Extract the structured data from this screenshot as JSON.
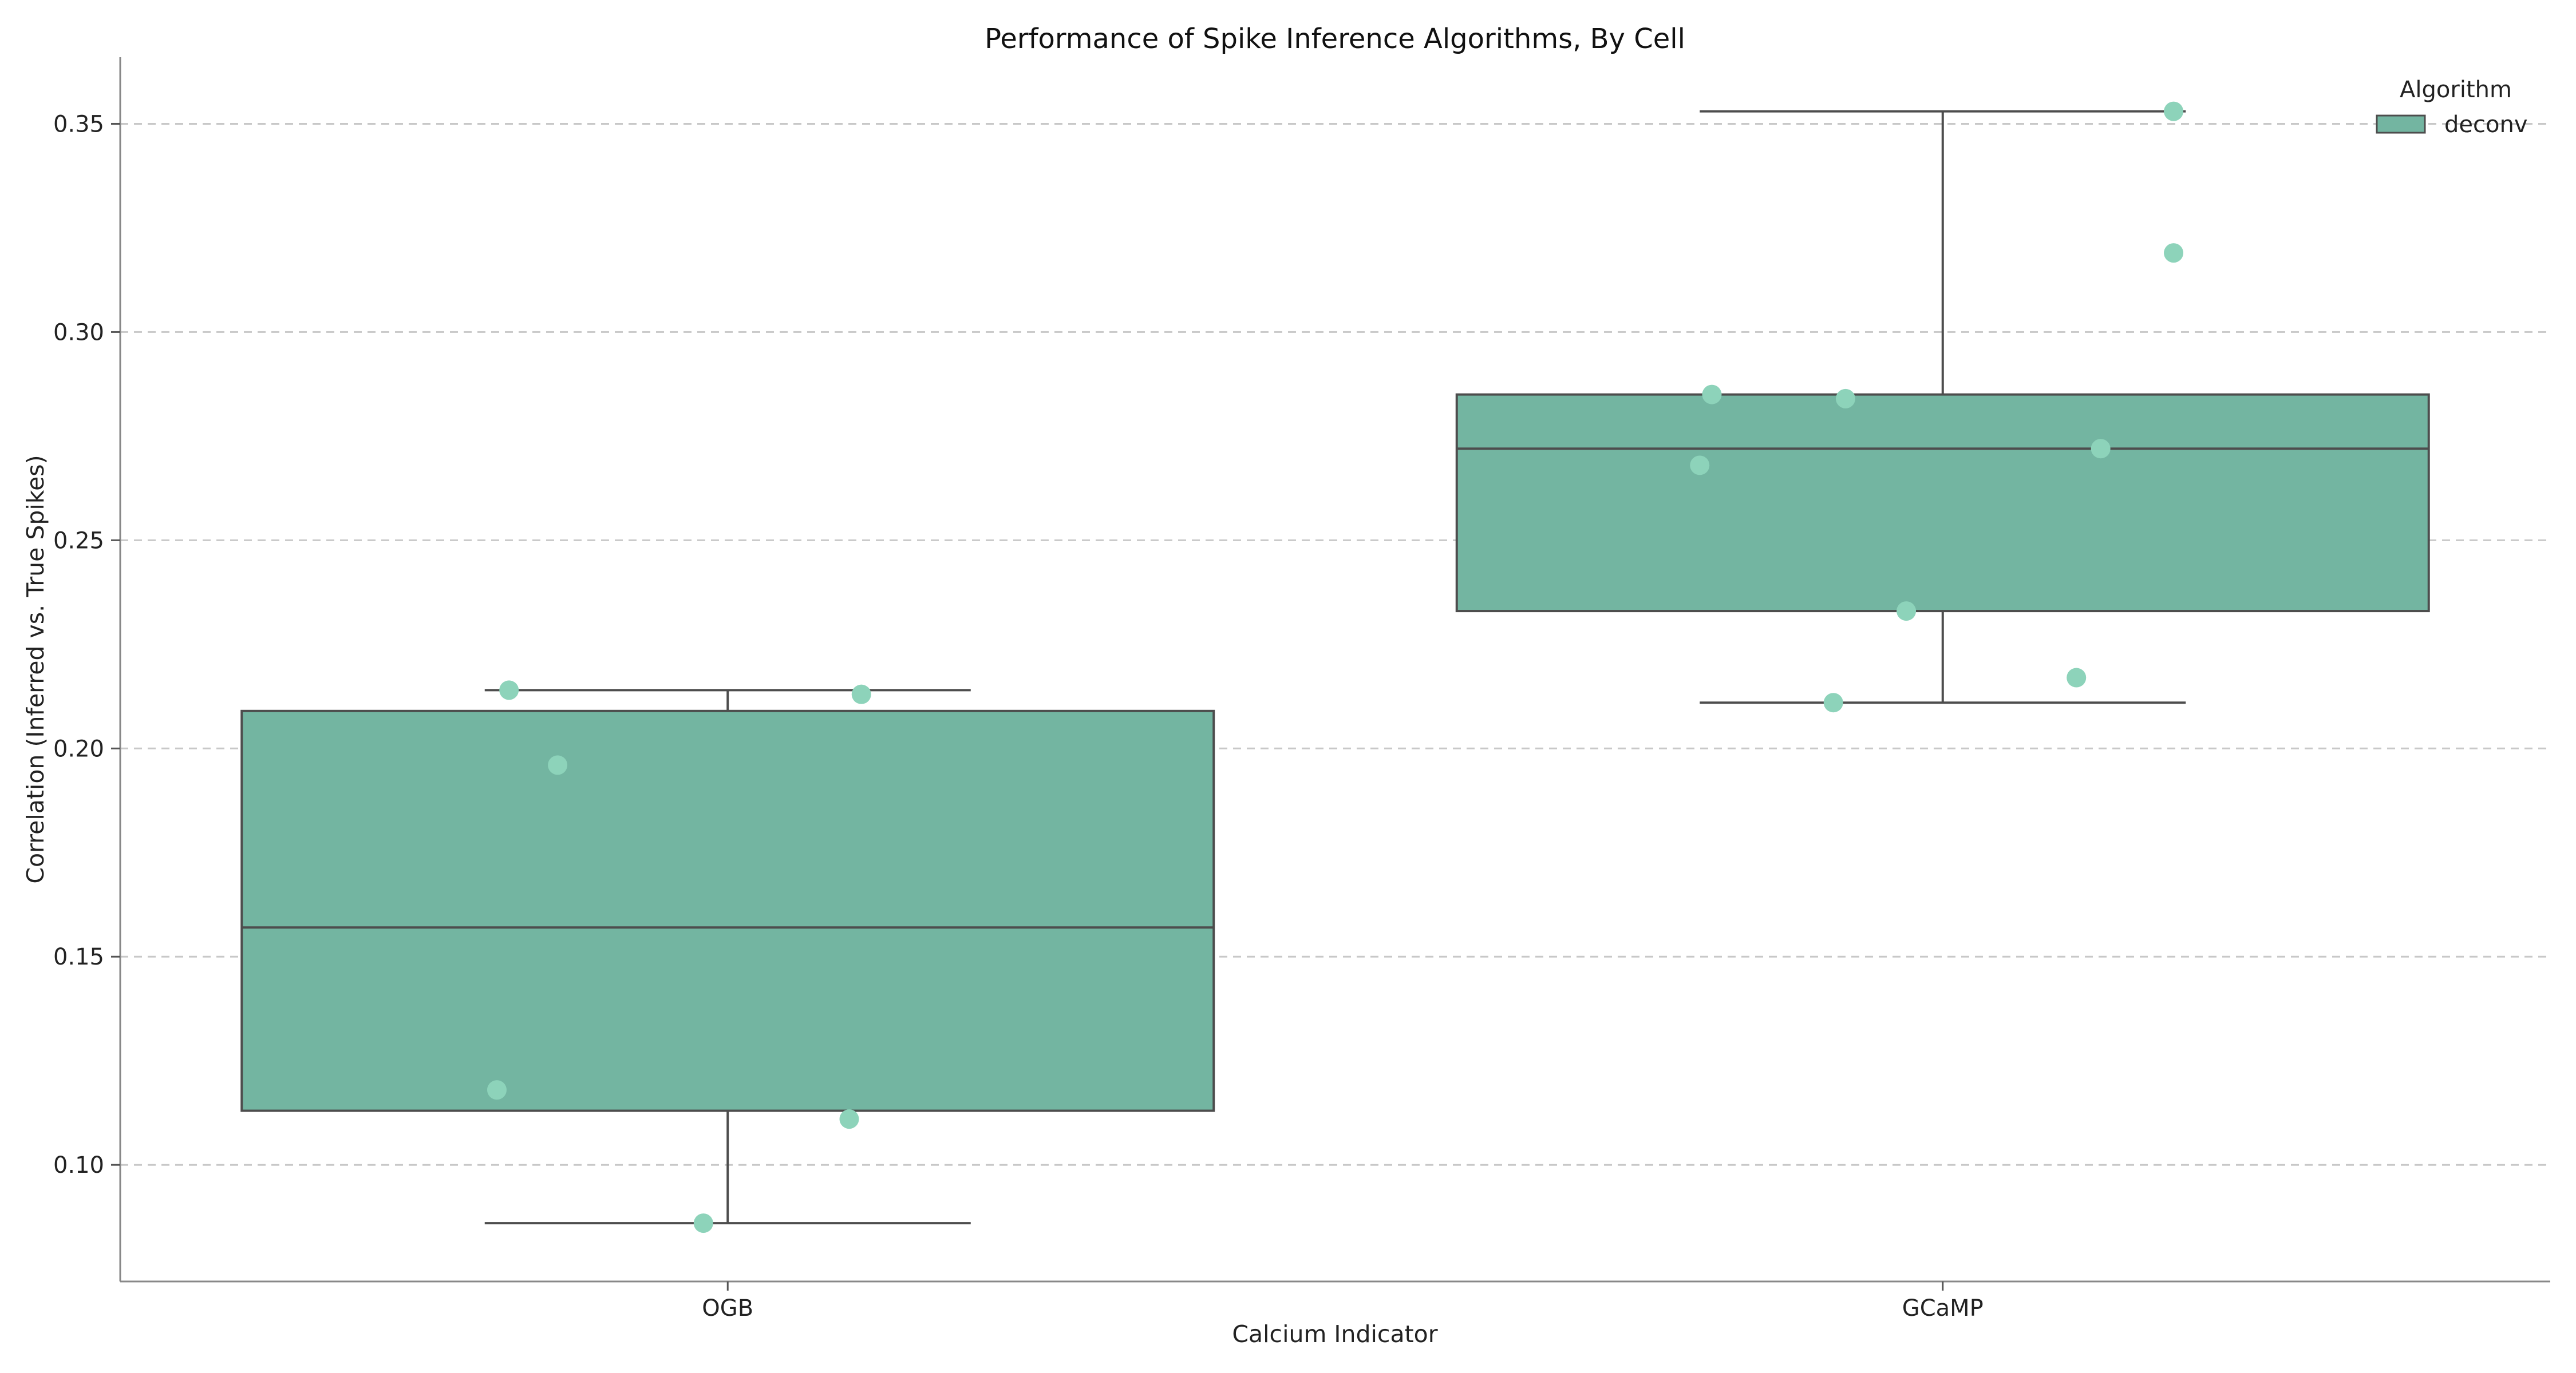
{
  "chart_data": {
    "type": "box",
    "title": "Performance of Spike Inference Algorithms, By Cell",
    "xlabel": "Calcium Indicator",
    "ylabel": "Correlation (Inferred vs. True Spikes)",
    "ylim": [
      0.072,
      0.366
    ],
    "yticks": [
      0.1,
      0.15,
      0.2,
      0.25,
      0.3,
      0.35
    ],
    "ytick_labels": [
      "0.10",
      "0.15",
      "0.20",
      "0.25",
      "0.30",
      "0.35"
    ],
    "categories": [
      "OGB",
      "GCaMP"
    ],
    "grid": "y-dashed",
    "legend": {
      "title": "Algorithm",
      "position": "top-right",
      "entries": [
        {
          "label": "deconv",
          "color": "#73b5a1"
        }
      ]
    },
    "colors": {
      "box": "#73b5a1",
      "point": "#8dd3ba",
      "edge": "#4d4d4d"
    },
    "series": [
      {
        "name": "deconv",
        "boxes": [
          {
            "category": "OGB",
            "whisker_low": 0.086,
            "q1": 0.113,
            "median": 0.157,
            "q3": 0.209,
            "whisker_high": 0.214
          },
          {
            "category": "GCaMP",
            "whisker_low": 0.211,
            "q1": 0.233,
            "median": 0.272,
            "q3": 0.285,
            "whisker_high": 0.353
          }
        ],
        "points": [
          {
            "category": "OGB",
            "values": [
              0.214,
              0.213,
              0.196,
              0.118,
              0.111,
              0.086
            ],
            "jitter": [
              -0.18,
              0.11,
              -0.14,
              -0.19,
              0.1,
              -0.02
            ]
          },
          {
            "category": "GCaMP",
            "values": [
              0.353,
              0.319,
              0.285,
              0.284,
              0.272,
              0.268,
              0.233,
              0.217,
              0.211
            ],
            "jitter": [
              0.19,
              0.19,
              -0.19,
              -0.08,
              0.13,
              -0.2,
              -0.03,
              0.11,
              -0.09
            ]
          }
        ]
      }
    ]
  }
}
